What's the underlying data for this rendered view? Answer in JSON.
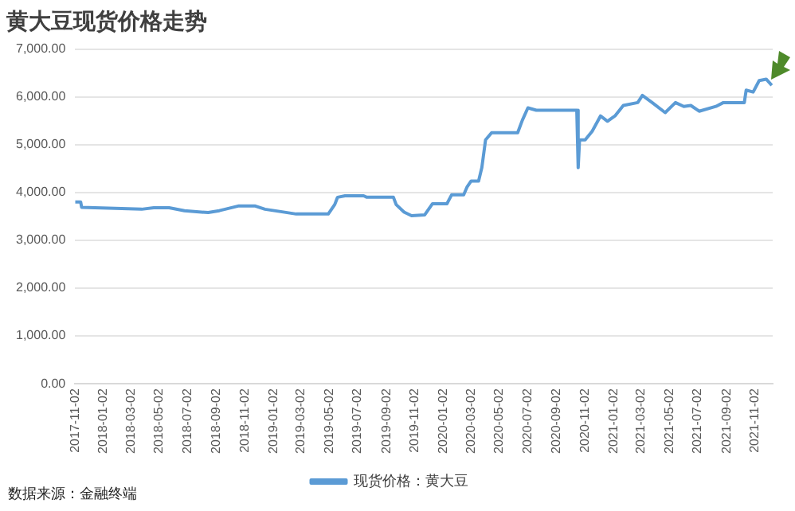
{
  "chart_data": {
    "type": "line",
    "title": "黄大豆现货价格走势",
    "annotations": [
      "数据来源：金融终端"
    ],
    "x": [
      "2017-11-02",
      "2017-11-14",
      "2017-11-16",
      "2018-03-25",
      "2018-04-20",
      "2018-05-23",
      "2018-06-25",
      "2018-08-15",
      "2018-09-08",
      "2018-10-20",
      "2018-11-23",
      "2018-12-15",
      "2019-01-18",
      "2019-02-20",
      "2019-04-30",
      "2019-05-14",
      "2019-05-20",
      "2019-06-05",
      "2019-07-15",
      "2019-07-22",
      "2019-09-17",
      "2019-09-23",
      "2019-10-10",
      "2019-10-26",
      "2019-11-23",
      "2019-12-10",
      "2020-01-10",
      "2020-01-20",
      "2020-02-15",
      "2020-02-22",
      "2020-03-02",
      "2020-03-18",
      "2020-03-25",
      "2020-04-02",
      "2020-04-15",
      "2020-06-10",
      "2020-06-20",
      "2020-07-02",
      "2020-07-20",
      "2020-10-15",
      "2020-10-18",
      "2020-10-21",
      "2020-11-02",
      "2020-11-17",
      "2020-12-05",
      "2020-12-20",
      "2021-01-05",
      "2021-01-23",
      "2021-02-23",
      "2021-03-05",
      "2021-03-26",
      "2021-04-23",
      "2021-05-15",
      "2021-06-02",
      "2021-06-17",
      "2021-07-05",
      "2021-08-10",
      "2021-08-26",
      "2021-10-10",
      "2021-10-14",
      "2021-10-29",
      "2021-11-11",
      "2021-11-26",
      "2021-12-08"
    ],
    "series": [
      {
        "name": "现货价格：黄大豆",
        "color": "#5b9bd5",
        "values": [
          3800,
          3800,
          3690,
          3650,
          3680,
          3680,
          3620,
          3580,
          3620,
          3720,
          3720,
          3650,
          3600,
          3550,
          3550,
          3750,
          3900,
          3930,
          3930,
          3900,
          3900,
          3745,
          3590,
          3515,
          3530,
          3765,
          3765,
          3950,
          3950,
          4110,
          4240,
          4240,
          4520,
          5100,
          5250,
          5250,
          5510,
          5770,
          5720,
          5720,
          4520,
          5100,
          5100,
          5280,
          5600,
          5490,
          5600,
          5820,
          5880,
          6030,
          5880,
          5670,
          5880,
          5800,
          5820,
          5700,
          5800,
          5880,
          5880,
          6140,
          6100,
          6340,
          6370,
          6240
        ]
      }
    ],
    "xlim": [
      "2017-11-02",
      "2021-12-10"
    ],
    "xticks": [
      "2017-11-02",
      "2018-01-02",
      "2018-03-02",
      "2018-05-02",
      "2018-07-02",
      "2018-09-02",
      "2018-11-02",
      "2019-01-02",
      "2019-03-02",
      "2019-05-02",
      "2019-07-02",
      "2019-09-02",
      "2019-11-02",
      "2020-01-02",
      "2020-03-02",
      "2020-05-02",
      "2020-07-02",
      "2020-09-02",
      "2020-11-02",
      "2021-01-02",
      "2021-03-02",
      "2021-05-02",
      "2021-07-02",
      "2021-09-02",
      "2021-11-02"
    ],
    "ylim": [
      0,
      7000
    ],
    "yticks": [
      {
        "value": 0,
        "label": "0.00"
      },
      {
        "value": 1000,
        "label": "1,000.00"
      },
      {
        "value": 2000,
        "label": "2,000.00"
      },
      {
        "value": 3000,
        "label": "3,000.00"
      },
      {
        "value": 4000,
        "label": "4,000.00"
      },
      {
        "value": 5000,
        "label": "5,000.00"
      },
      {
        "value": 6000,
        "label": "6,000.00"
      },
      {
        "value": 7000,
        "label": "7,000.00"
      }
    ],
    "grid": "y",
    "legend": "bottom",
    "marker": "none",
    "line_style": "solid"
  }
}
